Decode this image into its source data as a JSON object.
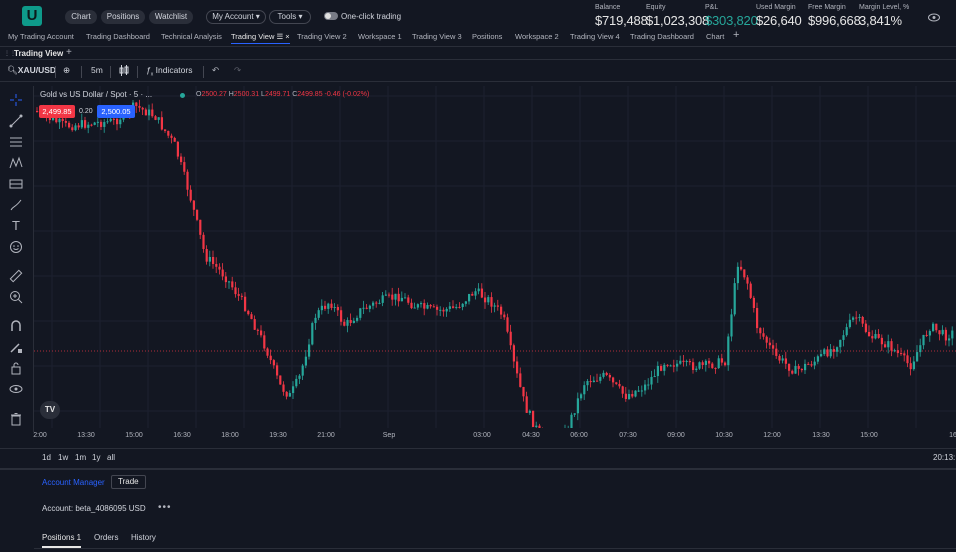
{
  "top": {
    "logo": "U",
    "nav": [
      "Chart",
      "Positions",
      "Watchlist"
    ],
    "account_menu": "My Account",
    "tools_menu": "Tools",
    "one_click_label": "One-click trading",
    "metrics": [
      {
        "label": "Balance",
        "value": "$719,488"
      },
      {
        "label": "Equity",
        "value": "$1,023,308"
      },
      {
        "label": "P&L",
        "value": "$303,820"
      },
      {
        "label": "Used Margin",
        "value": "$26,640"
      },
      {
        "label": "Free Margin",
        "value": "$996,668"
      },
      {
        "label": "Margin Level, %",
        "value": "3,841%"
      }
    ],
    "pnl_color": "#26a69a"
  },
  "tabs": [
    "My Trading Account",
    "Trading Dashboard",
    "Technical Analysis",
    "Trading View",
    "Trading View 2",
    "Workspace 1",
    "Trading View 3",
    "Positions",
    "Workspace 2",
    "Trading View 4",
    "Trading Dashboard",
    "Chart"
  ],
  "active_tab": "Trading View",
  "panel": {
    "title": "Trading View"
  },
  "toolbar": {
    "symbol": "XAU/USD",
    "interval": "5m",
    "indicators": "Indicators"
  },
  "chart": {
    "instrument": "Gold vs US Dollar / Spot · 5 · ...",
    "ohlc": {
      "o_label": "O",
      "o": "2500.27",
      "h_label": "H",
      "h": "2500.31",
      "l_label": "L",
      "l": "2499.71",
      "c_label": "C",
      "c": "2499.85",
      "change": "-0.46 (-0.02%)"
    },
    "sell_price": "2,499.85",
    "spread": "0.20",
    "buy_price": "2,500.05",
    "x_ticks": [
      "2:00",
      "13:30",
      "15:00",
      "16:30",
      "18:00",
      "19:30",
      "21:00",
      "Sep",
      "03:00",
      "04:30",
      "06:00",
      "07:30",
      "09:00",
      "10:30",
      "12:00",
      "13:30",
      "15:00",
      "16:"
    ],
    "up_color": "#26a69a",
    "down_color": "#f23645",
    "tv_badge": "TV"
  },
  "ranges": [
    "1d",
    "1w",
    "1m",
    "1y",
    "all"
  ],
  "clock": "20:13:",
  "account": {
    "manager_tab": "Account Manager",
    "trade_button": "Trade",
    "account_line": "Account: beta_4086095 USD",
    "bottom_tabs": [
      "Positions 1",
      "Orders",
      "History"
    ]
  }
}
